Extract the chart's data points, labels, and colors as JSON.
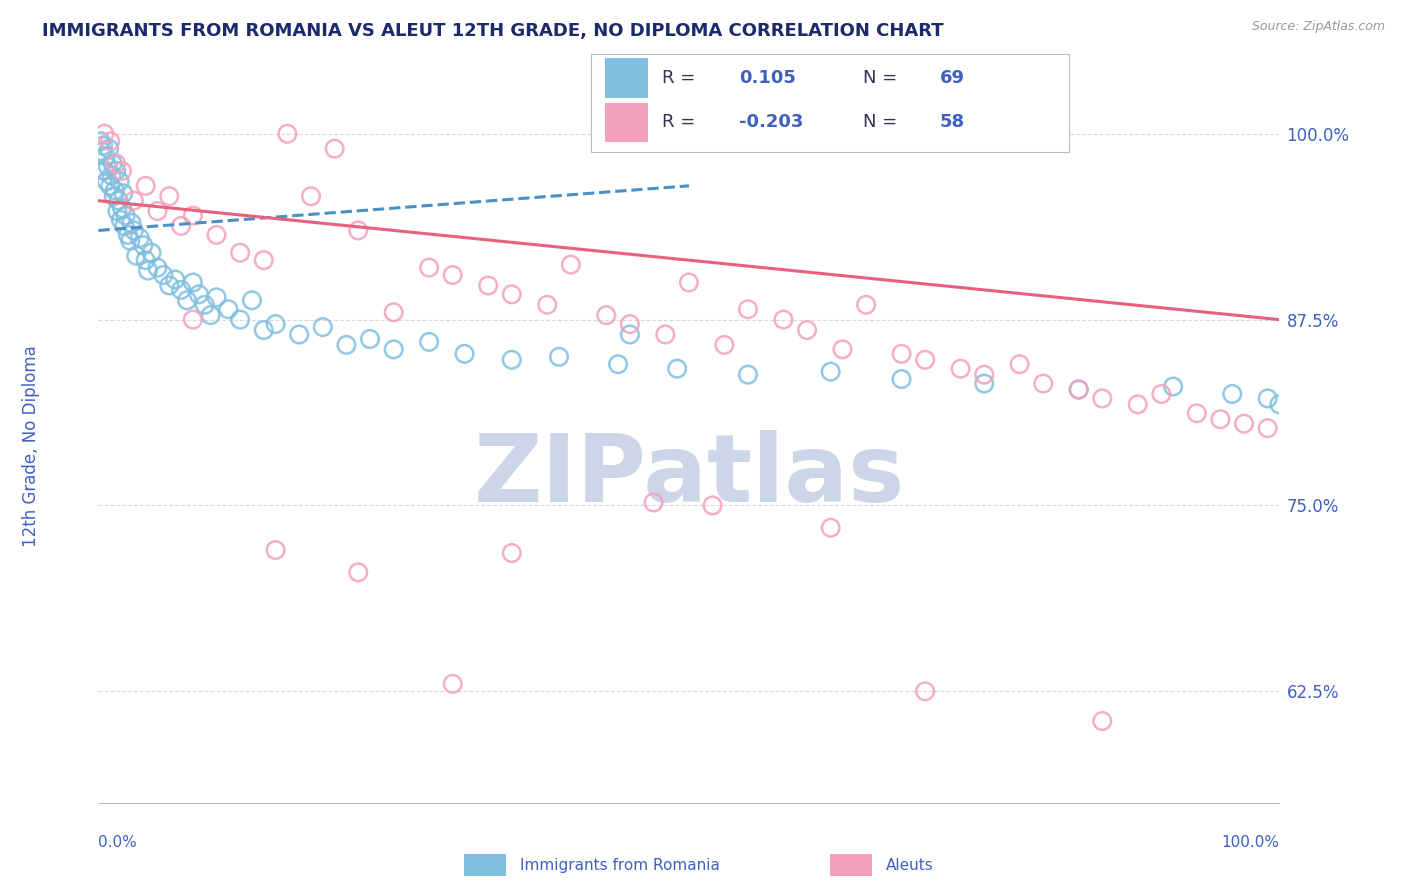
{
  "title": "IMMIGRANTS FROM ROMANIA VS ALEUT 12TH GRADE, NO DIPLOMA CORRELATION CHART",
  "source": "Source: ZipAtlas.com",
  "ylabel": "12th Grade, No Diploma",
  "xlim": [
    0.0,
    100.0
  ],
  "ylim": [
    55.0,
    103.0
  ],
  "yticks": [
    62.5,
    75.0,
    87.5,
    100.0
  ],
  "ytick_labels": [
    "62.5%",
    "75.0%",
    "87.5%",
    "100.0%"
  ],
  "legend_R_blue": "0.105",
  "legend_N_blue": "69",
  "legend_R_pink": "-0.203",
  "legend_N_pink": "58",
  "blue_color": "#7fbfdf",
  "pink_color": "#f4a0bc",
  "blue_line_color": "#4a90c4",
  "pink_line_color": "#e8607a",
  "grid_color": "#d0d0d0",
  "watermark_color": "#cdd5e8",
  "title_color": "#1a2a6a",
  "label_color": "#4060c0",
  "text_color": "#333355",
  "blue_scatter_x": [
    0.2,
    0.3,
    0.4,
    0.5,
    0.6,
    0.7,
    0.8,
    0.9,
    1.0,
    1.1,
    1.2,
    1.3,
    1.4,
    1.5,
    1.6,
    1.7,
    1.8,
    1.9,
    2.0,
    2.1,
    2.2,
    2.3,
    2.5,
    2.7,
    2.8,
    3.0,
    3.2,
    3.5,
    3.8,
    4.0,
    4.2,
    4.5,
    5.0,
    5.5,
    6.0,
    6.5,
    7.0,
    7.5,
    8.0,
    8.5,
    9.0,
    9.5,
    10.0,
    11.0,
    12.0,
    13.0,
    14.0,
    15.0,
    17.0,
    19.0,
    21.0,
    23.0,
    25.0,
    28.0,
    31.0,
    35.0,
    39.0,
    44.0,
    49.0,
    55.0,
    62.0,
    68.0,
    75.0,
    83.0,
    91.0,
    96.0,
    99.0,
    100.0,
    45.0
  ],
  "blue_scatter_y": [
    99.5,
    98.8,
    99.2,
    97.5,
    98.5,
    96.8,
    97.8,
    99.0,
    96.5,
    97.2,
    98.0,
    95.8,
    96.2,
    97.5,
    94.8,
    95.5,
    96.8,
    94.2,
    95.0,
    96.0,
    93.8,
    94.5,
    93.2,
    92.8,
    94.0,
    93.5,
    91.8,
    93.0,
    92.5,
    91.5,
    90.8,
    92.0,
    91.0,
    90.5,
    89.8,
    90.2,
    89.5,
    88.8,
    90.0,
    89.2,
    88.5,
    87.8,
    89.0,
    88.2,
    87.5,
    88.8,
    86.8,
    87.2,
    86.5,
    87.0,
    85.8,
    86.2,
    85.5,
    86.0,
    85.2,
    84.8,
    85.0,
    84.5,
    84.2,
    83.8,
    84.0,
    83.5,
    83.2,
    82.8,
    83.0,
    82.5,
    82.2,
    81.8,
    86.5
  ],
  "pink_scatter_x": [
    0.5,
    1.0,
    1.5,
    2.0,
    3.0,
    4.0,
    5.0,
    6.0,
    7.0,
    8.0,
    10.0,
    12.0,
    14.0,
    16.0,
    18.0,
    20.0,
    22.0,
    25.0,
    28.0,
    30.0,
    33.0,
    35.0,
    38.0,
    40.0,
    43.0,
    45.0,
    48.0,
    50.0,
    53.0,
    55.0,
    58.0,
    60.0,
    63.0,
    65.0,
    68.0,
    70.0,
    73.0,
    75.0,
    78.0,
    80.0,
    83.0,
    85.0,
    88.0,
    90.0,
    93.0,
    95.0,
    97.0,
    99.0,
    52.0,
    47.0,
    62.0,
    30.0,
    15.0,
    8.0,
    22.0,
    35.0,
    70.0,
    85.0
  ],
  "pink_scatter_y": [
    100.0,
    99.5,
    98.0,
    97.5,
    95.5,
    96.5,
    94.8,
    95.8,
    93.8,
    94.5,
    93.2,
    92.0,
    91.5,
    100.0,
    95.8,
    99.0,
    93.5,
    88.0,
    91.0,
    90.5,
    89.8,
    89.2,
    88.5,
    91.2,
    87.8,
    87.2,
    86.5,
    90.0,
    85.8,
    88.2,
    87.5,
    86.8,
    85.5,
    88.5,
    85.2,
    84.8,
    84.2,
    83.8,
    84.5,
    83.2,
    82.8,
    82.2,
    81.8,
    82.5,
    81.2,
    80.8,
    80.5,
    80.2,
    75.0,
    75.2,
    73.5,
    63.0,
    72.0,
    87.5,
    70.5,
    71.8,
    62.5,
    60.5
  ],
  "blue_trend_x0": 0.0,
  "blue_trend_x1": 50.0,
  "blue_trend_y0": 93.5,
  "blue_trend_y1": 96.5,
  "pink_trend_x0": 0.0,
  "pink_trend_x1": 100.0,
  "pink_trend_y0": 95.5,
  "pink_trend_y1": 87.5
}
